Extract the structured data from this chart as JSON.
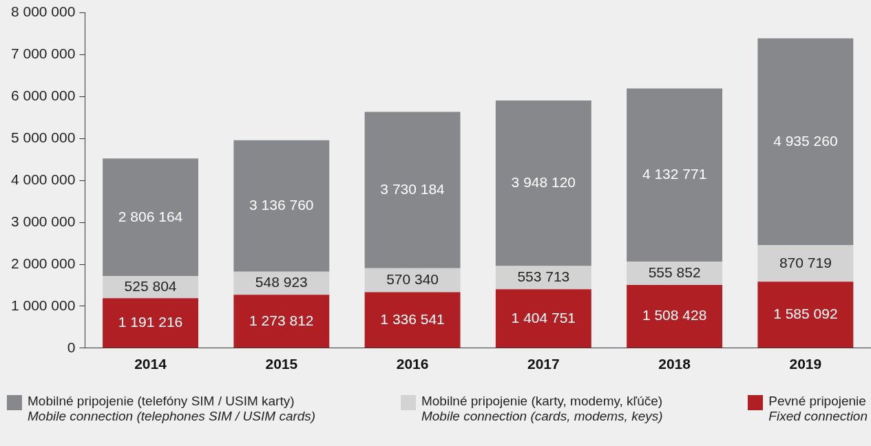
{
  "chart_data": {
    "type": "bar",
    "stacked": true,
    "categories": [
      "2014",
      "2015",
      "2016",
      "2017",
      "2018",
      "2019"
    ],
    "series": [
      {
        "name": "Pevné pripojenie\nFixed connection",
        "color": "#b01f24",
        "values": [
          1191216,
          1273812,
          1336541,
          1404751,
          1508428,
          1585092
        ],
        "value_labels": [
          "1 191 216",
          "1 273 812",
          "1 336 541",
          "1 404 751",
          "1 508 428",
          "1 585 092"
        ]
      },
      {
        "name": "Mobilné pripojenie (karty, modemy, kľúče)\nMobile connection (cards, modems, keys)",
        "color": "#d3d3d4",
        "values": [
          525804,
          548923,
          570340,
          553713,
          555852,
          870719
        ],
        "value_labels": [
          "525 804",
          "548 923",
          "570 340",
          "553 713",
          "555 852",
          "870 719"
        ]
      },
      {
        "name": "Mobilné pripojenie (telefóny SIM / USIM karty)\nMobile connection (telephones SIM / USIM cards)",
        "color": "#87888b",
        "values": [
          2806164,
          3136760,
          3730184,
          3948120,
          4132771,
          4935260
        ],
        "value_labels": [
          "2 806 164",
          "3 136 760",
          "3 730 184",
          "3 948 120",
          "4 132 771",
          "4 935 260"
        ]
      }
    ],
    "ylim": [
      0,
      8000000
    ],
    "yticks": [
      {
        "value": 0,
        "label": "0"
      },
      {
        "value": 1000000,
        "label": "1 000 000"
      },
      {
        "value": 2000000,
        "label": "2 000 000"
      },
      {
        "value": 3000000,
        "label": "3 000 000"
      },
      {
        "value": 4000000,
        "label": "4 000 000"
      },
      {
        "value": 5000000,
        "label": "5 000 000"
      },
      {
        "value": 6000000,
        "label": "6 000 000"
      },
      {
        "value": 7000000,
        "label": "7 000 000"
      },
      {
        "value": 8000000,
        "label": "8 000 000"
      }
    ],
    "grid": false,
    "legend": "bottom"
  }
}
